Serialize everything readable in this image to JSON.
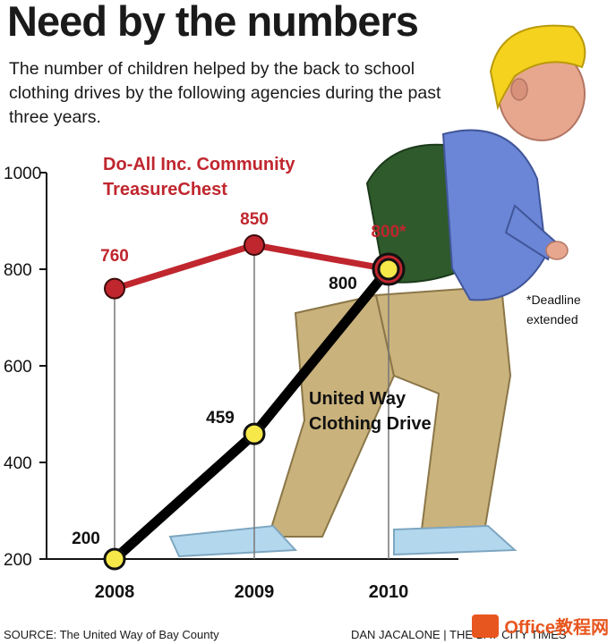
{
  "title": "Need by the numbers",
  "subtitle": "The number of children helped by the back to school clothing drives by the following agencies during the past three years.",
  "footer": {
    "source": "SOURCE: The United Way of Bay County",
    "credit": "DAN JACALONE | THE BAY CITY TIMES"
  },
  "watermark": {
    "text": "Office教程网",
    "icon": "office-logo-icon"
  },
  "colors": {
    "red_series": "#c0262e",
    "yellow_marker": "#f7e84a",
    "black_series": "#000000"
  },
  "chart_data": {
    "type": "line",
    "categories": [
      "2008",
      "2009",
      "2010"
    ],
    "ylim": [
      200,
      1000
    ],
    "yticks": [
      200,
      400,
      600,
      800,
      1000
    ],
    "grid": false,
    "series": [
      {
        "name": "Do-All Inc. Community TreasureChest",
        "values": [
          760,
          850,
          800
        ],
        "data_labels": [
          "760",
          "850",
          "800*"
        ],
        "color": "#c0262e"
      },
      {
        "name": "United Way Clothing Drive",
        "values": [
          200,
          459,
          800
        ],
        "data_labels": [
          "200",
          "459",
          "800"
        ],
        "color": "#000000"
      }
    ],
    "annotations": [
      "*Deadline extended"
    ]
  }
}
